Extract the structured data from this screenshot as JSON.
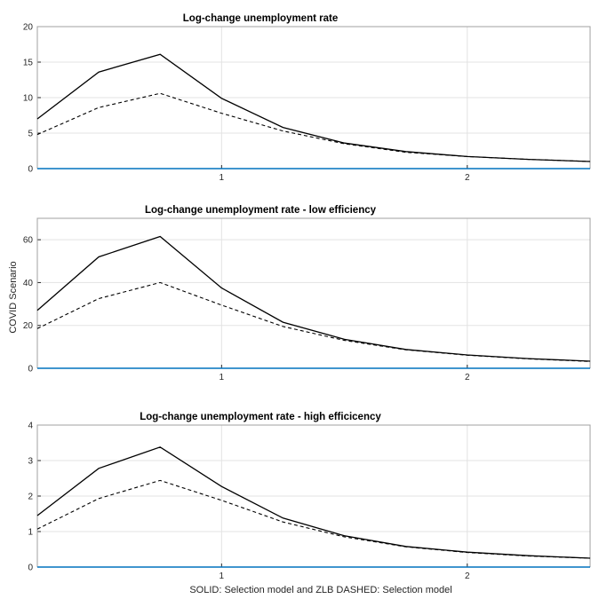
{
  "figure": {
    "ylabel": "COVID Scenario",
    "xlabel": "SOLID: Selection model and ZLB  DASHED: Selection model"
  },
  "chart_data": [
    {
      "type": "line",
      "title": "Log-change unemployment rate",
      "xlim": [
        0.25,
        2.5
      ],
      "ylim": [
        0,
        20
      ],
      "xticks": [
        1,
        2
      ],
      "yticks": [
        0,
        5,
        10,
        15,
        20
      ],
      "x": [
        0.25,
        0.5,
        0.75,
        1.0,
        1.25,
        1.5,
        1.75,
        2.0,
        2.25,
        2.5
      ],
      "series": [
        {
          "style": "solid",
          "values": [
            7.0,
            13.6,
            16.1,
            9.9,
            5.8,
            3.6,
            2.4,
            1.7,
            1.3,
            1.0
          ]
        },
        {
          "style": "dashed",
          "values": [
            4.8,
            8.6,
            10.6,
            7.8,
            5.3,
            3.5,
            2.3,
            1.7,
            1.3,
            1.0
          ]
        },
        {
          "style": "zero",
          "values": [
            0,
            0,
            0,
            0,
            0,
            0,
            0,
            0,
            0,
            0
          ]
        }
      ]
    },
    {
      "type": "line",
      "title": "Log-change unemployment rate - low efficiency",
      "xlim": [
        0.25,
        2.5
      ],
      "ylim": [
        0,
        70
      ],
      "xticks": [
        1,
        2
      ],
      "yticks": [
        0,
        20,
        40,
        60
      ],
      "x": [
        0.25,
        0.5,
        0.75,
        1.0,
        1.25,
        1.5,
        1.75,
        2.0,
        2.25,
        2.5
      ],
      "series": [
        {
          "style": "solid",
          "values": [
            27,
            52,
            61.5,
            37.5,
            21.5,
            13.5,
            8.8,
            6.2,
            4.5,
            3.3
          ]
        },
        {
          "style": "dashed",
          "values": [
            18.5,
            32.5,
            40,
            29.5,
            19.5,
            13,
            8.6,
            6.1,
            4.4,
            3.2
          ]
        },
        {
          "style": "zero",
          "values": [
            0,
            0,
            0,
            0,
            0,
            0,
            0,
            0,
            0,
            0
          ]
        }
      ]
    },
    {
      "type": "line",
      "title": "Log-change unemployment rate - high efficicency",
      "xlim": [
        0.25,
        2.5
      ],
      "ylim": [
        0,
        4
      ],
      "xticks": [
        1,
        2
      ],
      "yticks": [
        0,
        1,
        2,
        3,
        4
      ],
      "x": [
        0.25,
        0.5,
        0.75,
        1.0,
        1.25,
        1.5,
        1.75,
        2.0,
        2.25,
        2.5
      ],
      "series": [
        {
          "style": "solid",
          "values": [
            1.45,
            2.78,
            3.38,
            2.27,
            1.38,
            0.88,
            0.58,
            0.42,
            0.32,
            0.25
          ]
        },
        {
          "style": "dashed",
          "values": [
            1.07,
            1.93,
            2.44,
            1.88,
            1.27,
            0.85,
            0.57,
            0.41,
            0.31,
            0.25
          ]
        },
        {
          "style": "zero",
          "values": [
            0,
            0,
            0,
            0,
            0,
            0,
            0,
            0,
            0,
            0
          ]
        }
      ]
    }
  ]
}
